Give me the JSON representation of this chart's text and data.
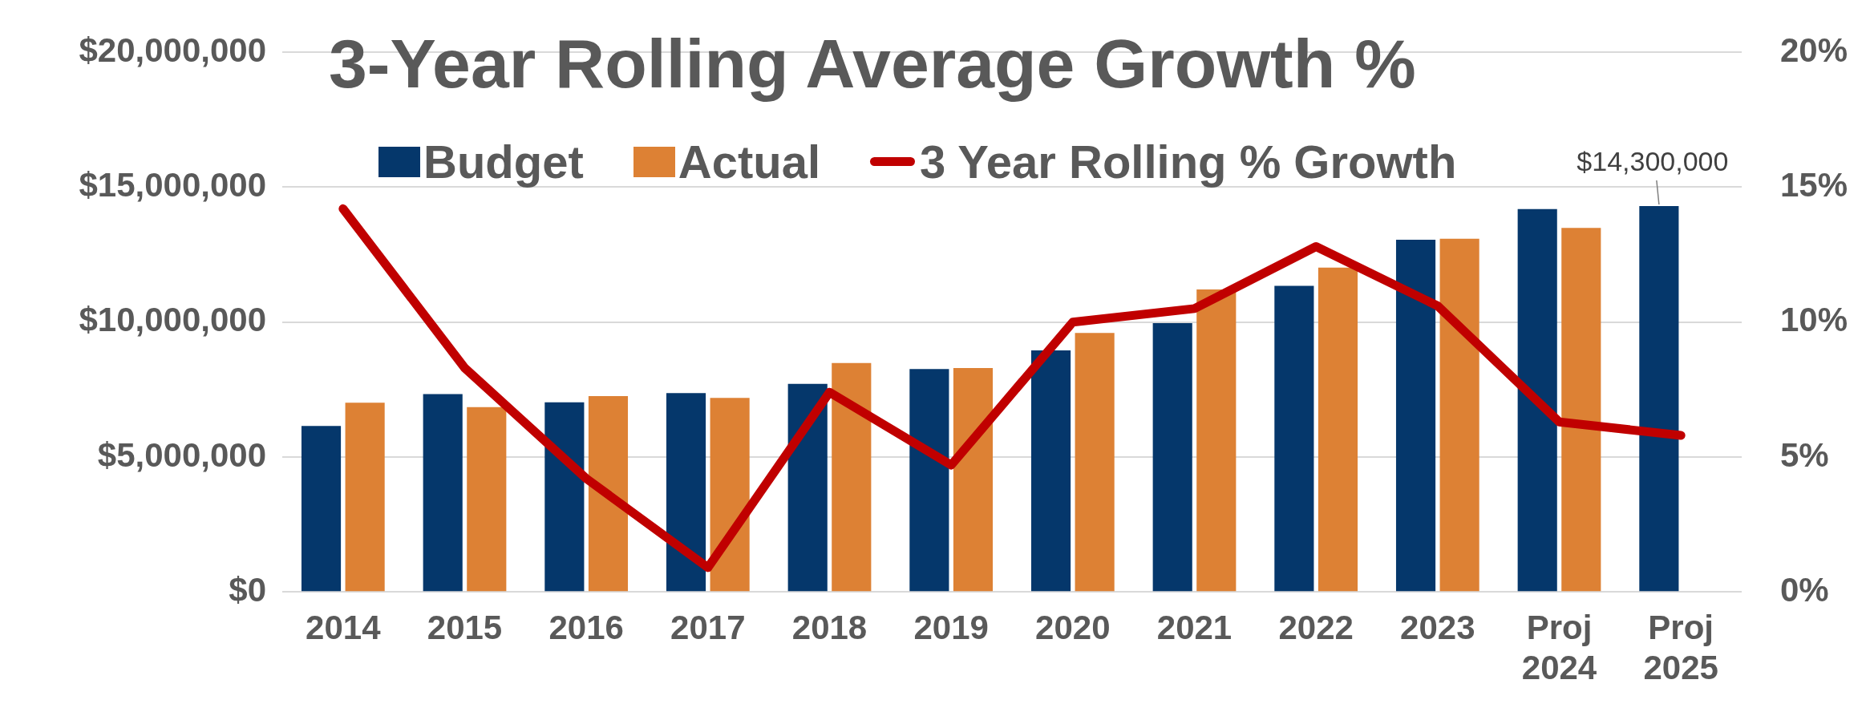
{
  "chart_data": {
    "type": "bar",
    "title": "3-Year Rolling Average Growth %",
    "categories": [
      "2014",
      "2015",
      "2016",
      "2017",
      "2018",
      "2019",
      "2020",
      "2021",
      "2022",
      "2023",
      "Proj 2024",
      "Proj 2025"
    ],
    "series": [
      {
        "name": "Budget",
        "color": "#05376b",
        "values": [
          6150000,
          7330000,
          7030000,
          7370000,
          7710000,
          8260000,
          8950000,
          9960000,
          11340000,
          13050000,
          14190000,
          14300000
        ],
        "value_labels": [
          null,
          null,
          null,
          null,
          null,
          null,
          null,
          null,
          null,
          null,
          null,
          "$14,300,000"
        ]
      },
      {
        "name": "Actual",
        "color": "#dd8134",
        "values": [
          7010000,
          6850000,
          7260000,
          7190000,
          8480000,
          8300000,
          9600000,
          11210000,
          12020000,
          13090000,
          13490000,
          null
        ]
      },
      {
        "name": "3 Year Rolling % Growth",
        "type": "line",
        "axis": "y2",
        "color": "#c00000",
        "values": [
          14.2,
          8.3,
          4.2,
          0.9,
          7.4,
          4.7,
          10.0,
          10.5,
          12.8,
          10.6,
          6.3,
          5.8
        ]
      }
    ],
    "ylim": [
      0,
      20000000
    ],
    "yticks": [
      {
        "value": 0,
        "label": "$0"
      },
      {
        "value": 5000000,
        "label": "$5,000,000"
      },
      {
        "value": 10000000,
        "label": "$10,000,000"
      },
      {
        "value": 15000000,
        "label": "$15,000,000"
      },
      {
        "value": 20000000,
        "label": "$20,000,000"
      }
    ],
    "y2lim": [
      0,
      20
    ],
    "y2ticks": [
      {
        "value": 0,
        "label": "0%"
      },
      {
        "value": 5,
        "label": "5%"
      },
      {
        "value": 10,
        "label": "10%"
      },
      {
        "value": 15,
        "label": "15%"
      },
      {
        "value": 20,
        "label": "20%"
      }
    ],
    "grid": "y",
    "legend": "top",
    "marker": "none",
    "line_style": "solid"
  }
}
